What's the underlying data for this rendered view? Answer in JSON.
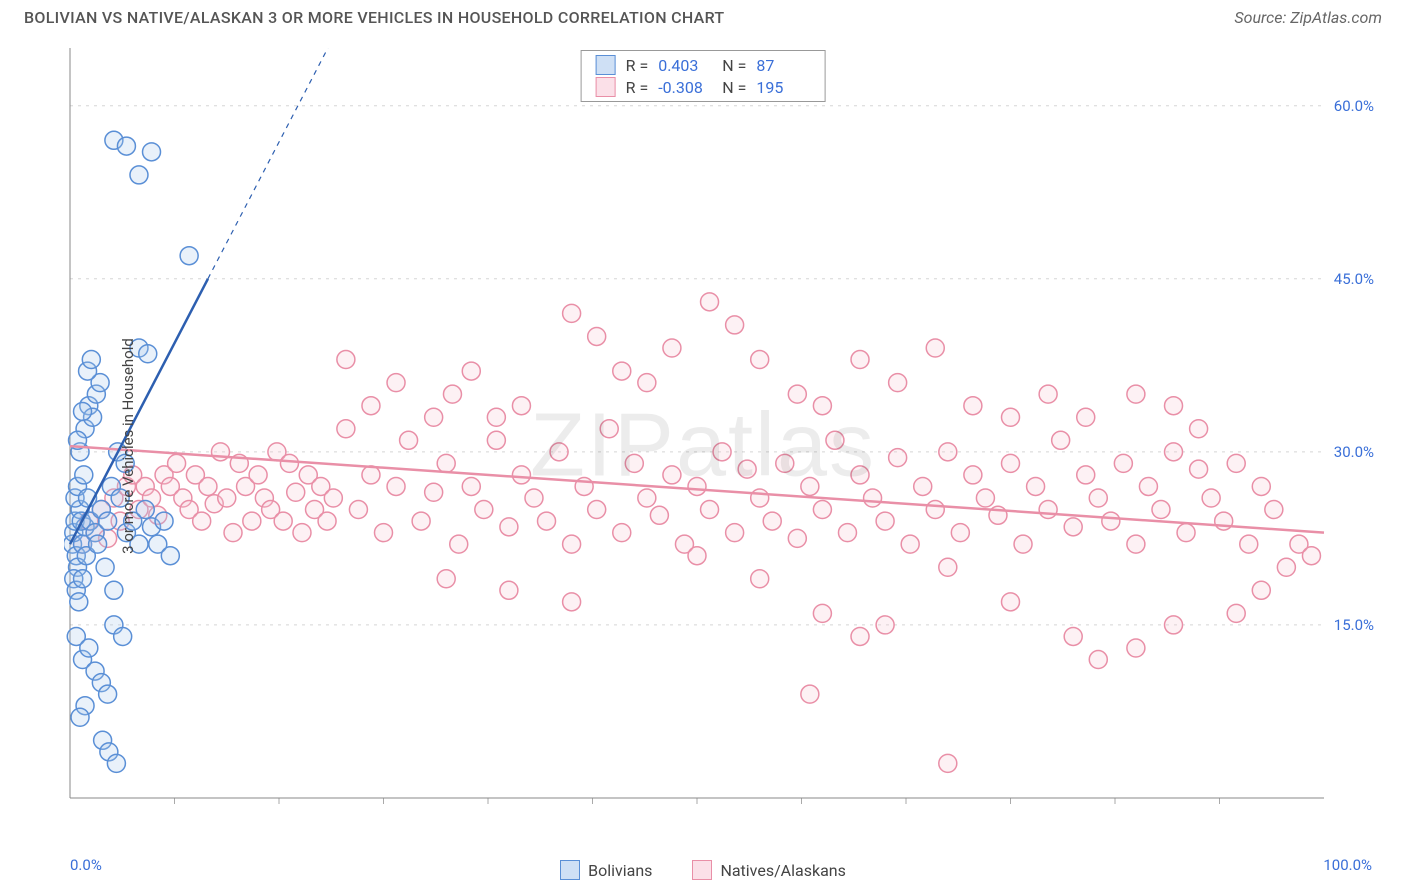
{
  "title": "BOLIVIAN VS NATIVE/ALASKAN 3 OR MORE VEHICLES IN HOUSEHOLD CORRELATION CHART",
  "source": "Source: ZipAtlas.com",
  "ylabel": "3 or more Vehicles in Household",
  "watermark": "ZIPatlas",
  "chart": {
    "type": "scatter",
    "background_color": "#ffffff",
    "grid_color": "#d5d5d5",
    "axis_color": "#888888",
    "tick_color": "#aaaaaa",
    "label_color": "#3a6fd8",
    "title_fontsize": 16,
    "label_fontsize": 15,
    "xlim": [
      0,
      100
    ],
    "ylim": [
      0,
      65
    ],
    "ytick_values": [
      15,
      30,
      45,
      60
    ],
    "ytick_labels": [
      "15.0%",
      "30.0%",
      "45.0%",
      "60.0%"
    ],
    "xtick_labels": [
      "0.0%",
      "100.0%"
    ],
    "marker_radius": 9,
    "marker_stroke_width": 1.5,
    "marker_fill_opacity": 0.25,
    "trend_line_width": 2.5,
    "trend_dash_pattern": "5,5"
  },
  "series": [
    {
      "id": "bolivians",
      "label": "Bolivians",
      "color_stroke": "#5a8fd6",
      "color_fill": "#a7c6ec",
      "swatch_border": "#5a8fd6",
      "swatch_fill": "#cfe0f5",
      "stats": {
        "R": "0.403",
        "N": "87"
      },
      "trend": {
        "x1": 0,
        "y1": 22,
        "x2": 11,
        "y2": 45,
        "dash_to_x": 22,
        "dash_to_y": 68
      },
      "points": [
        [
          0.2,
          22
        ],
        [
          0.3,
          23
        ],
        [
          0.5,
          21
        ],
        [
          0.4,
          24
        ],
        [
          0.6,
          20
        ],
        [
          0.8,
          25
        ],
        [
          1,
          22
        ],
        [
          1.2,
          23.5
        ],
        [
          0.3,
          19
        ],
        [
          0.4,
          26
        ],
        [
          0.6,
          27
        ],
        [
          0.9,
          24
        ],
        [
          1.1,
          28
        ],
        [
          1.4,
          26
        ],
        [
          0.5,
          18
        ],
        [
          0.7,
          17
        ],
        [
          1.0,
          19
        ],
        [
          1.3,
          21
        ],
        [
          1.6,
          24
        ],
        [
          2.0,
          23
        ],
        [
          2.2,
          22
        ],
        [
          2.5,
          25
        ],
        [
          2.8,
          20
        ],
        [
          3.0,
          24
        ],
        [
          3.3,
          27
        ],
        [
          3.5,
          18
        ],
        [
          0.8,
          30
        ],
        [
          1.2,
          32
        ],
        [
          1.5,
          34
        ],
        [
          1.8,
          33
        ],
        [
          2.1,
          35
        ],
        [
          2.4,
          36
        ],
        [
          0.6,
          31
        ],
        [
          1.0,
          33.5
        ],
        [
          1.4,
          37
        ],
        [
          1.7,
          38
        ],
        [
          5.5,
          39
        ],
        [
          6.2,
          38.5
        ],
        [
          0.5,
          14
        ],
        [
          1.0,
          12
        ],
        [
          1.5,
          13
        ],
        [
          2.0,
          11
        ],
        [
          2.5,
          10
        ],
        [
          3.0,
          9
        ],
        [
          1.2,
          8
        ],
        [
          0.8,
          7
        ],
        [
          3.5,
          15
        ],
        [
          4.2,
          14
        ],
        [
          2.6,
          5
        ],
        [
          3.1,
          4
        ],
        [
          3.7,
          3
        ],
        [
          3.5,
          57
        ],
        [
          4.5,
          56.5
        ],
        [
          6.5,
          56
        ],
        [
          5.5,
          54
        ],
        [
          9.5,
          47
        ],
        [
          4.0,
          26
        ],
        [
          4.5,
          23
        ],
        [
          5.0,
          24
        ],
        [
          5.5,
          22
        ],
        [
          6.0,
          25
        ],
        [
          6.5,
          23.5
        ],
        [
          7.0,
          22
        ],
        [
          7.5,
          24
        ],
        [
          8.0,
          21
        ],
        [
          3.8,
          30
        ],
        [
          4.4,
          29
        ]
      ]
    },
    {
      "id": "natives",
      "label": "Natives/Alaskans",
      "color_stroke": "#e98fa7",
      "color_fill": "#f9c9d5",
      "swatch_border": "#e98fa7",
      "swatch_fill": "#fbe0e8",
      "stats": {
        "R": "-0.308",
        "N": "195"
      },
      "trend": {
        "x1": 0,
        "y1": 30.5,
        "x2": 100,
        "y2": 23
      },
      "points": [
        [
          1,
          22
        ],
        [
          1.5,
          24
        ],
        [
          2,
          23
        ],
        [
          2.5,
          25
        ],
        [
          3,
          22.5
        ],
        [
          3.5,
          26
        ],
        [
          4,
          24
        ],
        [
          4.5,
          27
        ],
        [
          5,
          28
        ],
        [
          5.5,
          25
        ],
        [
          6,
          27
        ],
        [
          6.5,
          26
        ],
        [
          7,
          24.5
        ],
        [
          7.5,
          28
        ],
        [
          8,
          27
        ],
        [
          8.5,
          29
        ],
        [
          9,
          26
        ],
        [
          9.5,
          25
        ],
        [
          10,
          28
        ],
        [
          10.5,
          24
        ],
        [
          11,
          27
        ],
        [
          11.5,
          25.5
        ],
        [
          12,
          30
        ],
        [
          12.5,
          26
        ],
        [
          13,
          23
        ],
        [
          13.5,
          29
        ],
        [
          14,
          27
        ],
        [
          14.5,
          24
        ],
        [
          15,
          28
        ],
        [
          15.5,
          26
        ],
        [
          16,
          25
        ],
        [
          16.5,
          30
        ],
        [
          17,
          24
        ],
        [
          17.5,
          29
        ],
        [
          18,
          26.5
        ],
        [
          18.5,
          23
        ],
        [
          19,
          28
        ],
        [
          19.5,
          25
        ],
        [
          20,
          27
        ],
        [
          20.5,
          24
        ],
        [
          21,
          26
        ],
        [
          22,
          32
        ],
        [
          23,
          25
        ],
        [
          24,
          28
        ],
        [
          25,
          23
        ],
        [
          26,
          27
        ],
        [
          27,
          31
        ],
        [
          28,
          24
        ],
        [
          29,
          26.5
        ],
        [
          30,
          29
        ],
        [
          31,
          22
        ],
        [
          32,
          27
        ],
        [
          33,
          25
        ],
        [
          34,
          31
        ],
        [
          35,
          23.5
        ],
        [
          36,
          28
        ],
        [
          37,
          26
        ],
        [
          38,
          24
        ],
        [
          39,
          30
        ],
        [
          40,
          22
        ],
        [
          41,
          27
        ],
        [
          42,
          25
        ],
        [
          43,
          32
        ],
        [
          44,
          23
        ],
        [
          45,
          29
        ],
        [
          46,
          26
        ],
        [
          47,
          24.5
        ],
        [
          48,
          28
        ],
        [
          49,
          22
        ],
        [
          50,
          27
        ],
        [
          51,
          25
        ],
        [
          52,
          30
        ],
        [
          53,
          23
        ],
        [
          54,
          28.5
        ],
        [
          55,
          26
        ],
        [
          56,
          24
        ],
        [
          57,
          29
        ],
        [
          58,
          22.5
        ],
        [
          59,
          27
        ],
        [
          60,
          25
        ],
        [
          61,
          31
        ],
        [
          62,
          23
        ],
        [
          63,
          28
        ],
        [
          64,
          26
        ],
        [
          65,
          24
        ],
        [
          66,
          29.5
        ],
        [
          67,
          22
        ],
        [
          68,
          27
        ],
        [
          69,
          25
        ],
        [
          70,
          30
        ],
        [
          71,
          23
        ],
        [
          72,
          28
        ],
        [
          73,
          26
        ],
        [
          74,
          24.5
        ],
        [
          75,
          29
        ],
        [
          76,
          22
        ],
        [
          77,
          27
        ],
        [
          78,
          25
        ],
        [
          79,
          31
        ],
        [
          80,
          23.5
        ],
        [
          81,
          28
        ],
        [
          82,
          26
        ],
        [
          83,
          24
        ],
        [
          84,
          29
        ],
        [
          85,
          22
        ],
        [
          86,
          27
        ],
        [
          87,
          25
        ],
        [
          88,
          30
        ],
        [
          89,
          23
        ],
        [
          90,
          28.5
        ],
        [
          91,
          26
        ],
        [
          92,
          24
        ],
        [
          93,
          29
        ],
        [
          94,
          22
        ],
        [
          95,
          27
        ],
        [
          96,
          25
        ],
        [
          97,
          20
        ],
        [
          98,
          22
        ],
        [
          99,
          21
        ],
        [
          29,
          33
        ],
        [
          30.5,
          35
        ],
        [
          34,
          33
        ],
        [
          36,
          34
        ],
        [
          40,
          42
        ],
        [
          42,
          40
        ],
        [
          46,
          36
        ],
        [
          51,
          43
        ],
        [
          53,
          41
        ],
        [
          55,
          38
        ],
        [
          58,
          35
        ],
        [
          60,
          34
        ],
        [
          63,
          38
        ],
        [
          66,
          36
        ],
        [
          69,
          39
        ],
        [
          72,
          34
        ],
        [
          75,
          33
        ],
        [
          78,
          35
        ],
        [
          81,
          33
        ],
        [
          85,
          35
        ],
        [
          88,
          34
        ],
        [
          90,
          32
        ],
        [
          93,
          16
        ],
        [
          95,
          18
        ],
        [
          22,
          38
        ],
        [
          24,
          34
        ],
        [
          26,
          36
        ],
        [
          32,
          37
        ],
        [
          44,
          37
        ],
        [
          48,
          39
        ],
        [
          30,
          19
        ],
        [
          35,
          18
        ],
        [
          40,
          17
        ],
        [
          50,
          21
        ],
        [
          55,
          19
        ],
        [
          60,
          16
        ],
        [
          65,
          15
        ],
        [
          70,
          20
        ],
        [
          75,
          17
        ],
        [
          80,
          14
        ],
        [
          85,
          13
        ],
        [
          88,
          15
        ],
        [
          59,
          9
        ],
        [
          63,
          14
        ],
        [
          70,
          3
        ],
        [
          82,
          12
        ]
      ]
    }
  ],
  "bottom_legend": [
    {
      "label": "Bolivians",
      "series": "bolivians"
    },
    {
      "label": "Natives/Alaskans",
      "series": "natives"
    }
  ]
}
